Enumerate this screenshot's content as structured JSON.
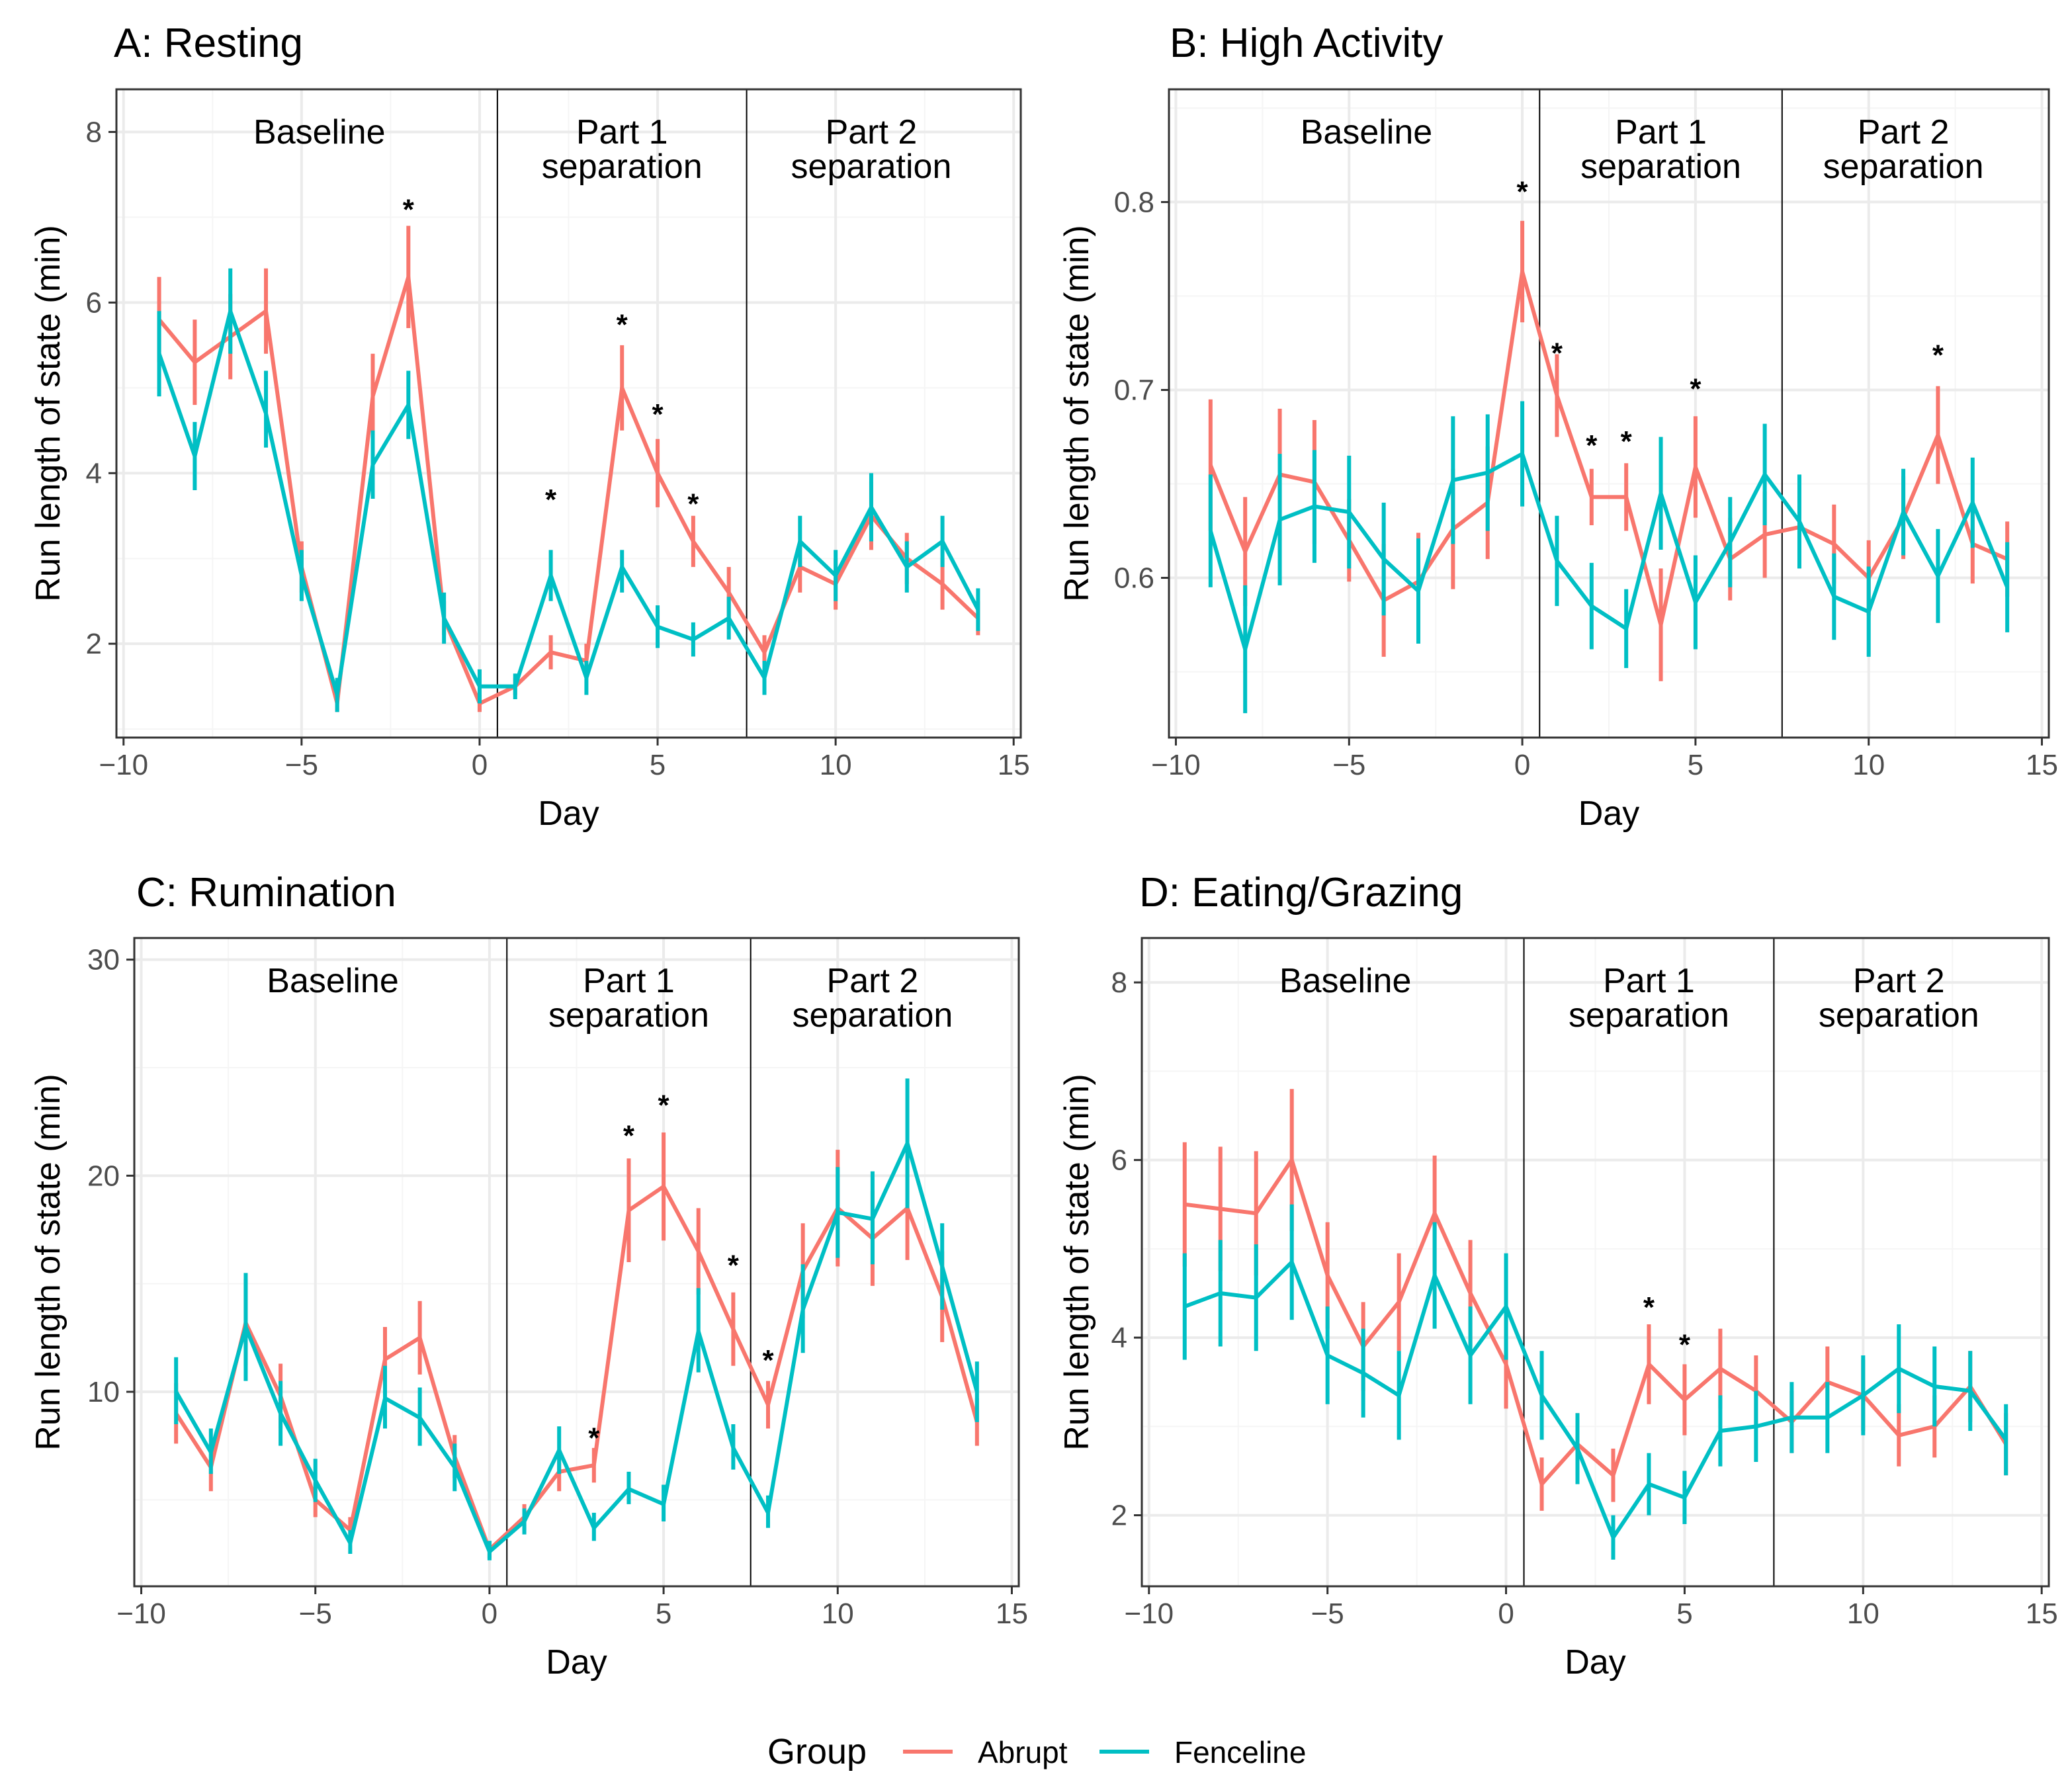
{
  "colors": {
    "Abrupt": "#F8766D",
    "Fenceline": "#00BFC4",
    "grid_major": "#ebebeb",
    "grid_minor": "#f5f5f5"
  },
  "legend": {
    "title": "Group",
    "items": [
      {
        "label": "Abrupt",
        "color": "#F8766D"
      },
      {
        "label": "Fenceline",
        "color": "#00BFC4"
      }
    ]
  },
  "chart_data": [
    {
      "type": "line",
      "title": "A: Resting",
      "xlabel": "Day",
      "ylabel": "Run length of state (min)",
      "xlim": [
        -10.2,
        15.2
      ],
      "ylim": [
        0.9,
        8.5
      ],
      "xticks": [
        -10,
        -5,
        0,
        5,
        10,
        15
      ],
      "xtick_labels": [
        "−10",
        "−5",
        "0",
        "5",
        "10",
        "15"
      ],
      "yticks": [
        2,
        4,
        6,
        8
      ],
      "ytick_labels": [
        "2",
        "4",
        "6",
        "8"
      ],
      "segments": [
        {
          "label": [
            "Baseline"
          ],
          "x": -4.5
        },
        {
          "label": [
            "Part 1",
            "separation"
          ],
          "x": 4.0
        },
        {
          "label": [
            "Part 2",
            "separation"
          ],
          "x": 11.0
        }
      ],
      "vlines": [
        0.5,
        7.5
      ],
      "stars": [
        {
          "x": -2,
          "y": 7.1,
          "text": "*"
        },
        {
          "x": 2,
          "y": 3.7,
          "text": "*"
        },
        {
          "x": 4,
          "y": 5.75,
          "text": "*"
        },
        {
          "x": 5,
          "y": 4.7,
          "text": "*"
        },
        {
          "x": 6,
          "y": 3.65,
          "text": "*"
        }
      ],
      "x": [
        -9,
        -8,
        -7,
        -6,
        -5,
        -4,
        -3,
        -2,
        -1,
        0,
        1,
        2,
        3,
        4,
        5,
        6,
        7,
        8,
        9,
        10,
        11,
        12,
        13,
        14
      ],
      "series": [
        {
          "name": "Abrupt",
          "values": [
            5.8,
            5.3,
            5.6,
            5.9,
            2.9,
            1.3,
            4.9,
            6.3,
            2.3,
            1.3,
            1.5,
            1.9,
            1.8,
            5.0,
            4.0,
            3.2,
            2.6,
            1.9,
            2.9,
            2.7,
            3.5,
            3.0,
            2.7,
            2.3
          ],
          "lower": [
            5.3,
            4.8,
            5.1,
            5.4,
            2.6,
            1.2,
            4.4,
            5.7,
            2.1,
            1.2,
            1.4,
            1.7,
            1.6,
            4.5,
            3.6,
            2.9,
            2.3,
            1.7,
            2.6,
            2.4,
            3.1,
            2.7,
            2.4,
            2.1
          ],
          "upper": [
            6.3,
            5.8,
            6.1,
            6.4,
            3.2,
            1.4,
            5.4,
            6.9,
            2.5,
            1.4,
            1.6,
            2.1,
            2.0,
            5.5,
            4.4,
            3.5,
            2.9,
            2.1,
            3.2,
            3.0,
            3.9,
            3.3,
            3.0,
            2.5
          ]
        },
        {
          "name": "Fenceline",
          "values": [
            5.4,
            4.2,
            5.9,
            4.7,
            2.8,
            1.4,
            4.1,
            4.8,
            2.3,
            1.5,
            1.5,
            2.8,
            1.6,
            2.9,
            2.2,
            2.05,
            2.3,
            1.6,
            3.2,
            2.8,
            3.6,
            2.9,
            3.2,
            2.4
          ],
          "lower": [
            4.9,
            3.8,
            5.4,
            4.3,
            2.5,
            1.2,
            3.7,
            4.4,
            2.0,
            1.3,
            1.35,
            2.5,
            1.4,
            2.6,
            1.95,
            1.85,
            2.05,
            1.4,
            2.9,
            2.5,
            3.2,
            2.6,
            2.9,
            2.15
          ],
          "upper": [
            5.9,
            4.6,
            6.4,
            5.2,
            3.1,
            1.6,
            4.5,
            5.2,
            2.6,
            1.7,
            1.65,
            3.1,
            1.8,
            3.1,
            2.45,
            2.25,
            2.55,
            1.8,
            3.5,
            3.1,
            4.0,
            3.2,
            3.5,
            2.65
          ]
        }
      ]
    },
    {
      "type": "line",
      "title": "B: High Activity",
      "xlabel": "Day",
      "ylabel": "Run length of state (min)",
      "xlim": [
        -10.2,
        15.2
      ],
      "ylim": [
        0.515,
        0.86
      ],
      "xticks": [
        -10,
        -5,
        0,
        5,
        10,
        15
      ],
      "xtick_labels": [
        "−10",
        "−5",
        "0",
        "5",
        "10",
        "15"
      ],
      "yticks": [
        0.6,
        0.7,
        0.8
      ],
      "ytick_labels": [
        "0.6",
        "0.7",
        "0.8"
      ],
      "segments": [
        {
          "label": [
            "Baseline"
          ],
          "x": -4.5
        },
        {
          "label": [
            "Part 1",
            "separation"
          ],
          "x": 4.0
        },
        {
          "label": [
            "Part 2",
            "separation"
          ],
          "x": 11.0
        }
      ],
      "vlines": [
        0.5,
        7.5
      ],
      "stars": [
        {
          "x": 0,
          "y": 0.806,
          "text": "*"
        },
        {
          "x": 1,
          "y": 0.72,
          "text": "*"
        },
        {
          "x": 2,
          "y": 0.671,
          "text": "*"
        },
        {
          "x": 3,
          "y": 0.673,
          "text": "*"
        },
        {
          "x": 5,
          "y": 0.701,
          "text": "*"
        },
        {
          "x": 12,
          "y": 0.719,
          "text": "*"
        }
      ],
      "x": [
        -9,
        -8,
        -7,
        -6,
        -5,
        -4,
        -3,
        -2,
        -1,
        0,
        1,
        2,
        3,
        4,
        5,
        6,
        7,
        8,
        9,
        10,
        11,
        12,
        13,
        14
      ],
      "series": [
        {
          "name": "Abrupt",
          "values": [
            0.66,
            0.614,
            0.655,
            0.651,
            0.62,
            0.588,
            0.598,
            0.626,
            0.64,
            0.763,
            0.697,
            0.643,
            0.643,
            0.575,
            0.659,
            0.61,
            0.623,
            0.627,
            0.618,
            0.6,
            0.632,
            0.676,
            0.618,
            0.61
          ],
          "lower": [
            0.625,
            0.585,
            0.62,
            0.618,
            0.598,
            0.558,
            0.572,
            0.594,
            0.61,
            0.736,
            0.675,
            0.628,
            0.625,
            0.545,
            0.632,
            0.588,
            0.6,
            0.605,
            0.597,
            0.58,
            0.61,
            0.65,
            0.597,
            0.59
          ],
          "upper": [
            0.695,
            0.643,
            0.69,
            0.684,
            0.642,
            0.618,
            0.624,
            0.658,
            0.67,
            0.79,
            0.719,
            0.658,
            0.661,
            0.605,
            0.686,
            0.632,
            0.646,
            0.649,
            0.639,
            0.62,
            0.654,
            0.702,
            0.639,
            0.63
          ]
        },
        {
          "name": "Fenceline",
          "values": [
            0.625,
            0.562,
            0.631,
            0.638,
            0.635,
            0.61,
            0.593,
            0.652,
            0.656,
            0.666,
            0.609,
            0.585,
            0.573,
            0.645,
            0.587,
            0.619,
            0.655,
            0.63,
            0.59,
            0.582,
            0.635,
            0.601,
            0.64,
            0.595
          ],
          "lower": [
            0.595,
            0.528,
            0.596,
            0.608,
            0.605,
            0.58,
            0.565,
            0.618,
            0.625,
            0.638,
            0.585,
            0.562,
            0.552,
            0.615,
            0.562,
            0.595,
            0.628,
            0.605,
            0.567,
            0.558,
            0.612,
            0.576,
            0.616,
            0.571
          ],
          "upper": [
            0.655,
            0.596,
            0.666,
            0.668,
            0.665,
            0.64,
            0.621,
            0.686,
            0.687,
            0.694,
            0.633,
            0.608,
            0.594,
            0.675,
            0.612,
            0.643,
            0.682,
            0.655,
            0.613,
            0.606,
            0.658,
            0.626,
            0.664,
            0.619
          ]
        }
      ]
    },
    {
      "type": "line",
      "title": "C: Rumination",
      "xlabel": "Day",
      "ylabel": "Run length of state (min)",
      "xlim": [
        -10.2,
        15.2
      ],
      "ylim": [
        1.0,
        31.0
      ],
      "xticks": [
        -10,
        -5,
        0,
        5,
        10,
        15
      ],
      "xtick_labels": [
        "−10",
        "−5",
        "0",
        "5",
        "10",
        "15"
      ],
      "yticks": [
        10,
        20,
        30
      ],
      "ytick_labels": [
        "10",
        "20",
        "30"
      ],
      "segments": [
        {
          "label": [
            "Baseline"
          ],
          "x": -4.5
        },
        {
          "label": [
            "Part 1",
            "separation"
          ],
          "x": 4.0
        },
        {
          "label": [
            "Part 2",
            "separation"
          ],
          "x": 11.0
        }
      ],
      "vlines": [
        0.5,
        7.5
      ],
      "stars": [
        {
          "x": 3,
          "y": 7.9,
          "text": "*"
        },
        {
          "x": 4,
          "y": 21.9,
          "text": "*"
        },
        {
          "x": 5,
          "y": 23.3,
          "text": "*"
        },
        {
          "x": 7,
          "y": 15.9,
          "text": "*"
        },
        {
          "x": 8,
          "y": 11.5,
          "text": "*"
        }
      ],
      "x": [
        -9,
        -8,
        -7,
        -6,
        -5,
        -4,
        -3,
        -2,
        -1,
        0,
        1,
        2,
        3,
        4,
        5,
        6,
        7,
        8,
        9,
        10,
        11,
        12,
        13,
        14
      ],
      "series": [
        {
          "name": "Abrupt",
          "values": [
            9.0,
            6.5,
            13.2,
            9.8,
            5.0,
            3.6,
            11.5,
            12.5,
            7.0,
            2.7,
            4.2,
            6.3,
            6.6,
            18.4,
            19.5,
            16.5,
            12.9,
            9.4,
            15.6,
            18.5,
            17.1,
            18.5,
            14.4,
            8.6
          ],
          "lower": [
            7.6,
            5.4,
            11.2,
            8.3,
            4.2,
            3.0,
            10.0,
            10.8,
            6.0,
            2.3,
            3.6,
            5.4,
            5.8,
            16.0,
            17.0,
            14.5,
            11.2,
            8.3,
            13.4,
            15.8,
            14.9,
            16.1,
            12.3,
            7.5
          ],
          "upper": [
            10.4,
            7.6,
            15.2,
            11.3,
            5.8,
            4.2,
            13.0,
            14.2,
            8.0,
            3.1,
            4.8,
            7.2,
            7.4,
            20.8,
            22.0,
            18.5,
            14.6,
            10.5,
            17.8,
            21.2,
            19.3,
            20.9,
            16.5,
            9.7
          ]
        },
        {
          "name": "Fenceline",
          "values": [
            10.0,
            7.2,
            13.0,
            9.0,
            5.9,
            3.0,
            9.7,
            8.8,
            6.5,
            2.6,
            4.0,
            7.3,
            3.7,
            5.5,
            4.8,
            12.8,
            7.4,
            4.4,
            13.8,
            18.3,
            18.0,
            21.5,
            15.8,
            10.0
          ],
          "lower": [
            8.5,
            6.2,
            10.5,
            7.5,
            4.9,
            2.5,
            8.3,
            7.5,
            5.4,
            2.2,
            3.4,
            6.2,
            3.1,
            4.8,
            4.0,
            10.9,
            6.4,
            3.7,
            11.8,
            16.2,
            15.9,
            18.5,
            13.8,
            8.6
          ],
          "upper": [
            11.6,
            8.3,
            15.5,
            10.5,
            6.9,
            3.6,
            11.2,
            10.2,
            7.6,
            3.1,
            4.6,
            8.4,
            4.4,
            6.3,
            5.7,
            14.8,
            8.5,
            5.2,
            15.9,
            20.4,
            20.2,
            24.5,
            17.8,
            11.4
          ]
        }
      ]
    },
    {
      "type": "line",
      "title": "D: Eating/Grazing",
      "xlabel": "Day",
      "ylabel": "Run length of state (min)",
      "xlim": [
        -10.2,
        15.2
      ],
      "ylim": [
        1.2,
        8.5
      ],
      "xticks": [
        -10,
        -5,
        0,
        5,
        10,
        15
      ],
      "xtick_labels": [
        "−10",
        "−5",
        "0",
        "5",
        "10",
        "15"
      ],
      "yticks": [
        2,
        4,
        6,
        8
      ],
      "ytick_labels": [
        "2",
        "4",
        "6",
        "8"
      ],
      "segments": [
        {
          "label": [
            "Baseline"
          ],
          "x": -4.5
        },
        {
          "label": [
            "Part 1",
            "separation"
          ],
          "x": 4.0
        },
        {
          "label": [
            "Part 2",
            "separation"
          ],
          "x": 11.0
        }
      ],
      "vlines": [
        0.5,
        7.5
      ],
      "stars": [
        {
          "x": 4,
          "y": 4.35,
          "text": "*"
        },
        {
          "x": 5,
          "y": 3.93,
          "text": "*"
        }
      ],
      "x": [
        -9,
        -8,
        -7,
        -6,
        -5,
        -4,
        -3,
        -2,
        -1,
        0,
        1,
        2,
        3,
        4,
        5,
        6,
        7,
        8,
        9,
        10,
        11,
        12,
        13,
        14
      ],
      "series": [
        {
          "name": "Abrupt",
          "values": [
            5.5,
            5.45,
            5.4,
            6.0,
            4.7,
            3.9,
            4.4,
            5.4,
            4.5,
            3.7,
            2.35,
            2.8,
            2.45,
            3.7,
            3.3,
            3.65,
            3.4,
            3.05,
            3.5,
            3.35,
            2.9,
            3.0,
            3.45,
            2.8
          ],
          "lower": [
            4.8,
            4.75,
            4.7,
            5.2,
            4.1,
            3.4,
            3.85,
            4.75,
            3.9,
            3.2,
            2.05,
            2.45,
            2.15,
            3.25,
            2.9,
            3.2,
            3.0,
            2.7,
            3.1,
            2.95,
            2.55,
            2.65,
            3.05,
            2.45
          ],
          "upper": [
            6.2,
            6.15,
            6.1,
            6.8,
            5.3,
            4.4,
            4.95,
            6.05,
            5.1,
            4.2,
            2.65,
            3.15,
            2.75,
            4.15,
            3.7,
            4.1,
            3.8,
            3.4,
            3.9,
            3.75,
            3.25,
            3.35,
            3.85,
            3.15
          ]
        },
        {
          "name": "Fenceline",
          "values": [
            4.35,
            4.5,
            4.45,
            4.85,
            3.8,
            3.6,
            3.35,
            4.7,
            3.8,
            4.35,
            3.35,
            2.75,
            1.75,
            2.35,
            2.2,
            2.95,
            3.0,
            3.1,
            3.1,
            3.35,
            3.65,
            3.45,
            3.4,
            2.85
          ],
          "lower": [
            3.75,
            3.9,
            3.85,
            4.2,
            3.25,
            3.1,
            2.85,
            4.1,
            3.25,
            3.75,
            2.85,
            2.35,
            1.5,
            2.0,
            1.9,
            2.55,
            2.6,
            2.7,
            2.7,
            2.9,
            3.15,
            3.0,
            2.95,
            2.45
          ],
          "upper": [
            4.95,
            5.1,
            5.05,
            5.5,
            4.35,
            4.1,
            3.85,
            5.3,
            4.35,
            4.95,
            3.85,
            3.15,
            2.0,
            2.7,
            2.5,
            3.35,
            3.4,
            3.5,
            3.5,
            3.8,
            4.15,
            3.9,
            3.85,
            3.25
          ]
        }
      ]
    }
  ]
}
